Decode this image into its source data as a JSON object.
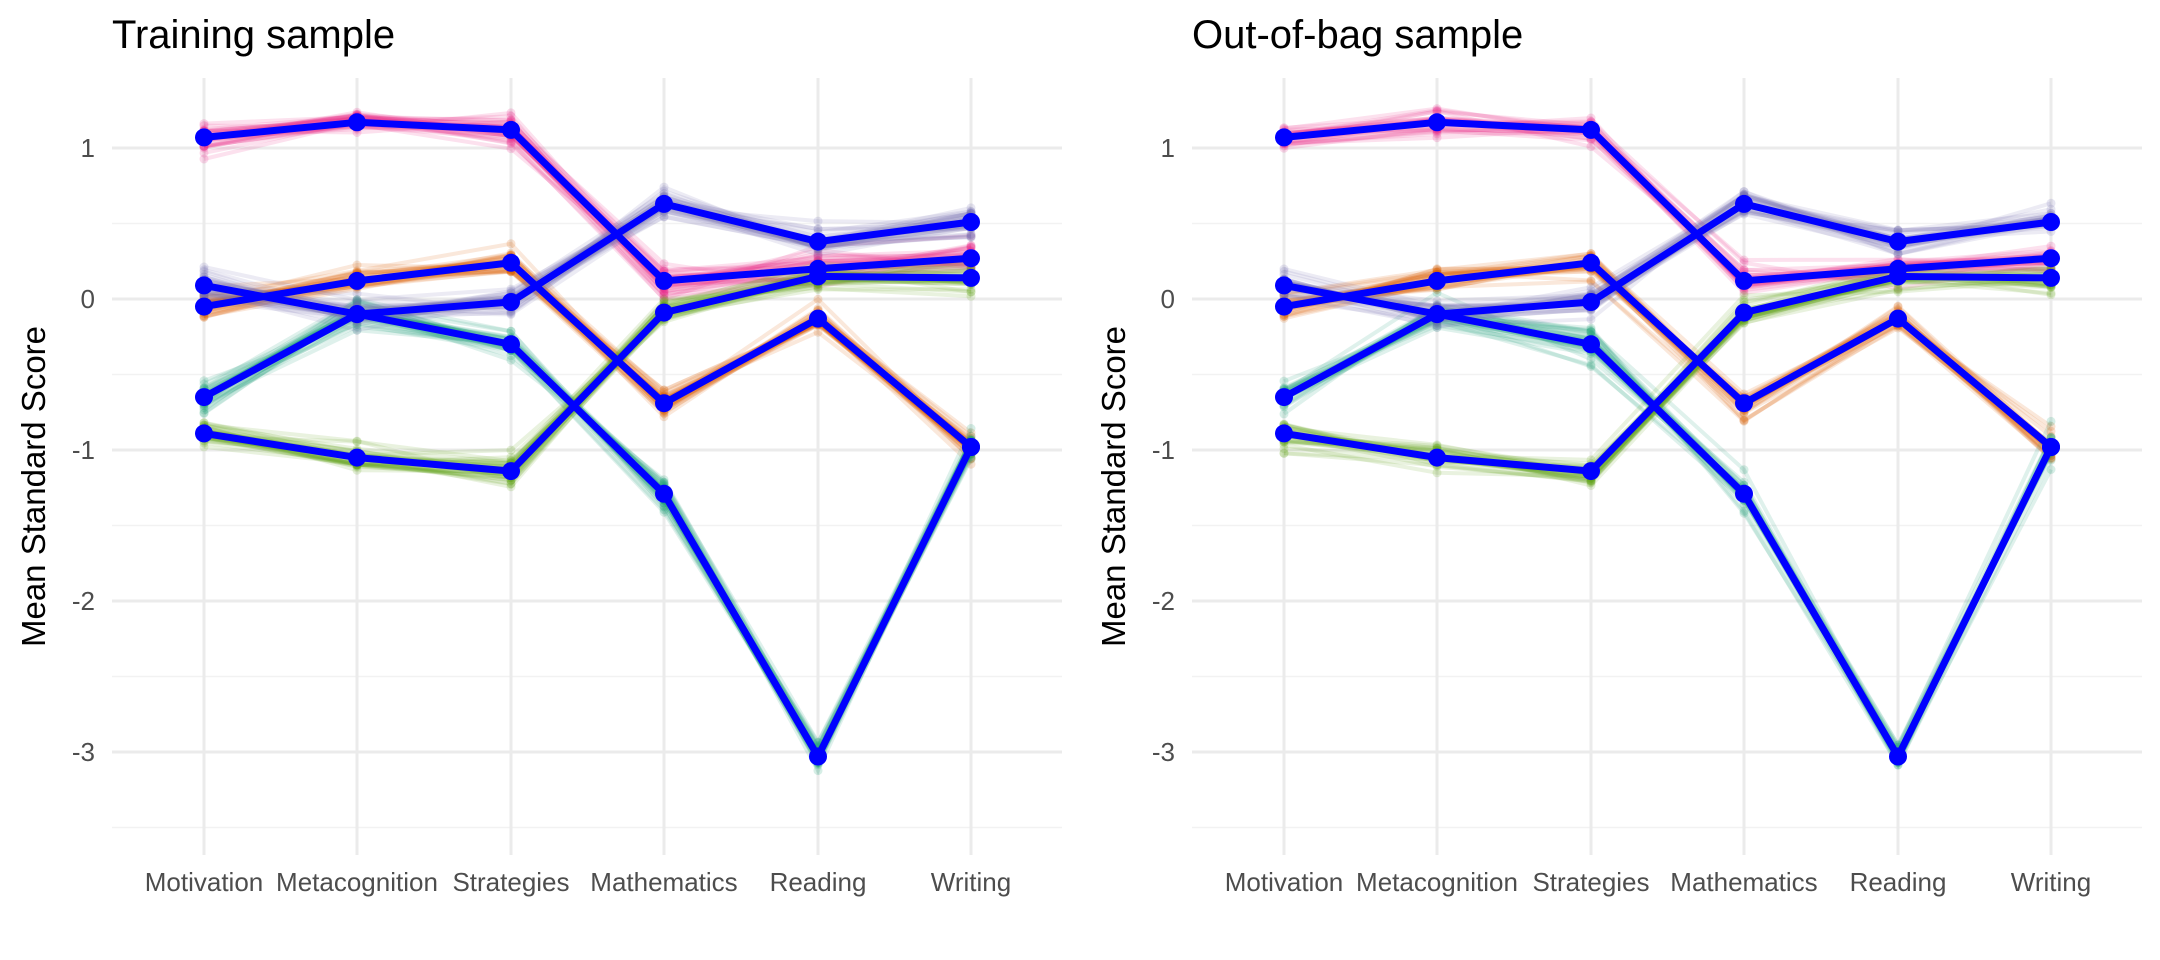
{
  "chart_data": [
    {
      "type": "line",
      "title": "Training sample",
      "xlabel": "",
      "ylabel": "Mean Standard Score",
      "categories": [
        "Motivation",
        "Metacognition",
        "Strategies",
        "Mathematics",
        "Reading",
        "Writing"
      ],
      "yticks": [
        "1",
        "0",
        "-1",
        "-2",
        "-3"
      ],
      "ylim": [
        -3.6,
        1.45
      ],
      "grid": true,
      "legend": "none",
      "series": [
        {
          "color": "#e7298a",
          "values": [
            1.07,
            1.17,
            1.12,
            0.12,
            0.2,
            0.27
          ]
        },
        {
          "color": "#d95f02",
          "values": [
            -0.05,
            0.12,
            0.24,
            -0.69,
            -0.13,
            -0.98
          ]
        },
        {
          "color": "#1b9e77",
          "values": [
            -0.65,
            -0.1,
            -0.3,
            -1.29,
            -3.03,
            -0.98
          ]
        },
        {
          "color": "#66a61e",
          "values": [
            -0.89,
            -1.05,
            -1.14,
            -0.09,
            0.15,
            0.14
          ]
        },
        {
          "color": "#7570b3",
          "values": [
            0.09,
            -0.1,
            -0.02,
            0.63,
            0.38,
            0.51
          ]
        }
      ]
    },
    {
      "type": "line",
      "title": "Out-of-bag sample",
      "xlabel": "",
      "ylabel": "Mean Standard Score",
      "categories": [
        "Motivation",
        "Metacognition",
        "Strategies",
        "Mathematics",
        "Reading",
        "Writing"
      ],
      "yticks": [
        "1",
        "0",
        "-1",
        "-2",
        "-3"
      ],
      "ylim": [
        -3.6,
        1.45
      ],
      "grid": true,
      "legend": "none",
      "series": [
        {
          "color": "#e7298a",
          "values": [
            1.07,
            1.17,
            1.12,
            0.12,
            0.2,
            0.27
          ]
        },
        {
          "color": "#d95f02",
          "values": [
            -0.05,
            0.12,
            0.24,
            -0.69,
            -0.13,
            -0.98
          ]
        },
        {
          "color": "#1b9e77",
          "values": [
            -0.65,
            -0.1,
            -0.3,
            -1.29,
            -3.03,
            -0.98
          ]
        },
        {
          "color": "#66a61e",
          "values": [
            -0.89,
            -1.05,
            -1.14,
            -0.09,
            0.15,
            0.14
          ]
        },
        {
          "color": "#7570b3",
          "values": [
            0.09,
            -0.1,
            -0.02,
            0.63,
            0.38,
            0.51
          ]
        }
      ]
    }
  ],
  "mean_line_color": "#0000ff"
}
